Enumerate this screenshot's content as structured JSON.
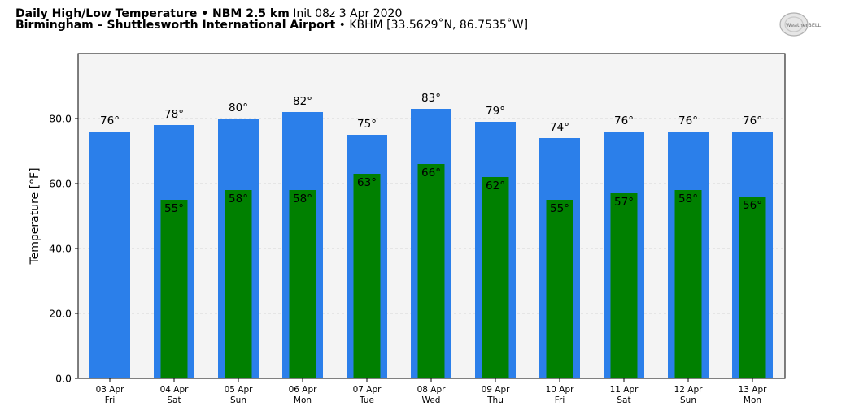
{
  "header": {
    "title_bold": "Daily High/Low Temperature • NBM 2.5 km",
    "title_init": "Init 08z 3 Apr 2020",
    "station_bold": "Birmingham – Shuttlesworth International Airport",
    "station_info": "• KBHM [33.5629˚N, 86.7535˚W]"
  },
  "logo": {
    "text": "WeatherBELL",
    "icon": "weatherbell-logo"
  },
  "colors": {
    "high": "#2b7fea",
    "low": "#008000",
    "plot_bg": "#f4f4f4",
    "grid": "#cccccc"
  },
  "chart_data": {
    "type": "bar",
    "categories": [
      "03 Apr",
      "04 Apr",
      "05 Apr",
      "06 Apr",
      "07 Apr",
      "08 Apr",
      "09 Apr",
      "10 Apr",
      "11 Apr",
      "12 Apr",
      "13 Apr"
    ],
    "weekdays": [
      "Fri",
      "Sat",
      "Sun",
      "Mon",
      "Tue",
      "Wed",
      "Thu",
      "Fri",
      "Sat",
      "Sun",
      "Mon"
    ],
    "series": [
      {
        "values": [
          76,
          78,
          80,
          82,
          75,
          83,
          79,
          74,
          76,
          76,
          76
        ]
      },
      {
        "values": [
          null,
          55,
          58,
          58,
          63,
          66,
          62,
          55,
          57,
          58,
          56
        ]
      }
    ],
    "ylabel": "Temperature [°F]",
    "ylim": [
      0,
      100
    ],
    "yticks": [
      "0.0",
      "20.0",
      "40.0",
      "60.0",
      "80.0"
    ],
    "value_suffix": "°",
    "grid": "y-dashed"
  }
}
